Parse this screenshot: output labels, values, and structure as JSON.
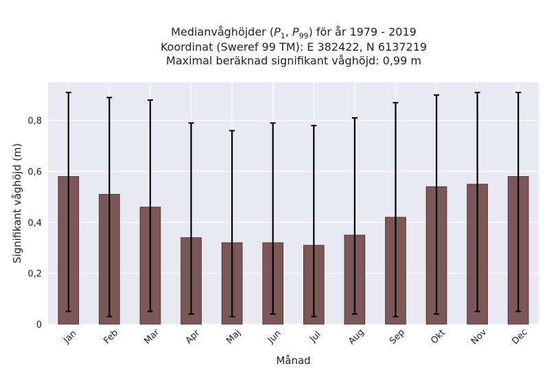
{
  "chart_data": {
    "type": "bar",
    "title_lines": [
      "Medianvåghöjder (P1, P99) för år 1979 - 2019",
      "Koordinat (Sweref 99 TM): E 382422, N 6137219",
      "Maximal beräknad signifikant våghöjd: 0,99 m"
    ],
    "xlabel": "Månad",
    "ylabel": "Signifikant våghöjd (m)",
    "categories": [
      "Jan",
      "Feb",
      "Mar",
      "Apr",
      "Maj",
      "Jun",
      "Jul",
      "Aug",
      "Sep",
      "Okt",
      "Nov",
      "Dec"
    ],
    "values": [
      0.58,
      0.51,
      0.46,
      0.34,
      0.32,
      0.32,
      0.31,
      0.35,
      0.42,
      0.54,
      0.55,
      0.58
    ],
    "error_low": [
      0.05,
      0.03,
      0.05,
      0.04,
      0.03,
      0.04,
      0.03,
      0.04,
      0.03,
      0.04,
      0.05,
      0.05
    ],
    "error_high": [
      0.91,
      0.89,
      0.88,
      0.79,
      0.76,
      0.79,
      0.78,
      0.81,
      0.87,
      0.9,
      0.91,
      0.91
    ],
    "ylim": [
      0,
      0.95
    ],
    "yticks": [
      0,
      0.2,
      0.4,
      0.6,
      0.8
    ],
    "ytick_labels": [
      "0",
      "0,2",
      "0,4",
      "0,6",
      "0,8"
    ],
    "grid": true,
    "colors": {
      "bar": "#7b5757",
      "bar_edge": "#3d2b2b",
      "errorbar": "#000000",
      "plot_bg": "#e9e9f1",
      "grid": "#ffffff"
    }
  }
}
